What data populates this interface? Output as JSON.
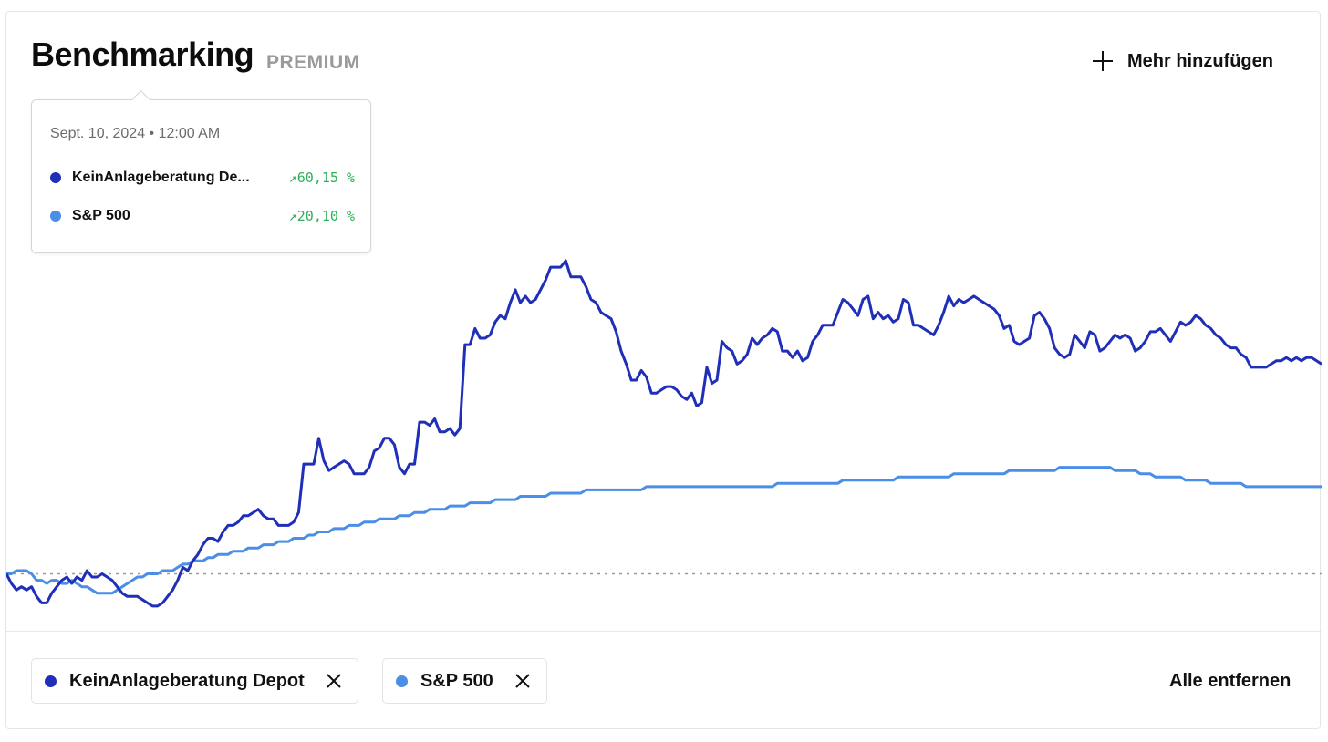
{
  "header": {
    "title": "Benchmarking",
    "badge": "PREMIUM",
    "add_label": "Mehr hinzufügen"
  },
  "tooltip": {
    "date": "Sept. 10, 2024 • 12:00 AM",
    "rows": [
      {
        "name": "KeinAnlageberatung De...",
        "value": "↗60,15 %",
        "color": "#1f2fb8"
      },
      {
        "name": "S&P 500",
        "value": "↗20,10 %",
        "color": "#4a8ee6"
      }
    ]
  },
  "chips": [
    {
      "name": "KeinAnlageberatung Depot",
      "color": "#1f2fb8",
      "remove_icon": "close-icon"
    },
    {
      "name": "S&P 500",
      "color": "#4a8ee6",
      "remove_icon": "close-icon"
    }
  ],
  "remove_all_label": "Alle entfernen",
  "colors": {
    "depot": "#1f2fb8",
    "sp500": "#4a8ee6",
    "positive": "#2fae5a",
    "baseline": "#9a9a9a"
  },
  "chart_data": {
    "type": "line",
    "baseline": 0,
    "ylim": [
      -12,
      145
    ],
    "grid": false,
    "series": [
      {
        "name": "KeinAnlageberatung Depot",
        "color": "#1f2fb8",
        "values": [
          0,
          -3,
          -5,
          -4,
          -5,
          -4,
          -7,
          -9,
          -9,
          -6,
          -4,
          -2,
          -1,
          -3,
          -1,
          -2,
          1,
          -1,
          -1,
          0,
          -1,
          -2,
          -4,
          -6,
          -7,
          -7,
          -7,
          -8,
          -9,
          -10,
          -10,
          -9,
          -7,
          -5,
          -2,
          2,
          1,
          4,
          6,
          9,
          11,
          11,
          10,
          13,
          15,
          15,
          16,
          18,
          18,
          19,
          20,
          18,
          17,
          17,
          15,
          15,
          15,
          16,
          19,
          34,
          34,
          34,
          42,
          35,
          32,
          33,
          34,
          35,
          34,
          31,
          31,
          31,
          33,
          38,
          39,
          42,
          42,
          40,
          33,
          31,
          34,
          34,
          47,
          47,
          46,
          48,
          44,
          44,
          45,
          43,
          45,
          71,
          71,
          76,
          73,
          73,
          74,
          78,
          80,
          79,
          84,
          88,
          84,
          86,
          84,
          85,
          88,
          91,
          95,
          95,
          95,
          97,
          92,
          92,
          92,
          89,
          85,
          84,
          81,
          80,
          79,
          75,
          69,
          65,
          60,
          60,
          63,
          61,
          56,
          56,
          57,
          58,
          58,
          57,
          55,
          54,
          56,
          52,
          53,
          64,
          59,
          60,
          72,
          70,
          69,
          65,
          66,
          68,
          73,
          71,
          73,
          74,
          76,
          75,
          69,
          69,
          67,
          69,
          66,
          67,
          72,
          74,
          77,
          77,
          77,
          81,
          85,
          84,
          82,
          80,
          85,
          86,
          79,
          81,
          79,
          80,
          78,
          79,
          85,
          84,
          77,
          77,
          76,
          75,
          74,
          77,
          81,
          86,
          83,
          85,
          84,
          85,
          86,
          85,
          84,
          83,
          82,
          80,
          76,
          77,
          72,
          71,
          72,
          73,
          80,
          81,
          79,
          76,
          70,
          68,
          67,
          68,
          74,
          72,
          70,
          75,
          74,
          69,
          70,
          72,
          74,
          73,
          74,
          73,
          69,
          70,
          72,
          75,
          75,
          76,
          74,
          72,
          75,
          78,
          77,
          78,
          80,
          79,
          77,
          76,
          74,
          73,
          71,
          70,
          70,
          68,
          67,
          64,
          64,
          64,
          64,
          65,
          66,
          66,
          67,
          66,
          67,
          66,
          67,
          67,
          66,
          65
        ]
      },
      {
        "name": "S&P 500",
        "color": "#4a8ee6",
        "values": [
          0,
          0,
          1,
          1,
          1,
          0,
          -2,
          -2,
          -3,
          -2,
          -2,
          -3,
          -3,
          -2,
          -3,
          -4,
          -4,
          -5,
          -6,
          -6,
          -6,
          -6,
          -5,
          -4,
          -3,
          -2,
          -1,
          -1,
          0,
          0,
          0,
          1,
          1,
          1,
          2,
          3,
          3,
          4,
          4,
          4,
          5,
          5,
          6,
          6,
          6,
          7,
          7,
          7,
          8,
          8,
          8,
          9,
          9,
          9,
          10,
          10,
          10,
          11,
          11,
          11,
          12,
          12,
          13,
          13,
          13,
          14,
          14,
          14,
          15,
          15,
          15,
          16,
          16,
          16,
          17,
          17,
          17,
          17,
          18,
          18,
          18,
          19,
          19,
          19,
          20,
          20,
          20,
          20,
          21,
          21,
          21,
          21,
          22,
          22,
          22,
          22,
          22,
          23,
          23,
          23,
          23,
          23,
          24,
          24,
          24,
          24,
          24,
          24,
          25,
          25,
          25,
          25,
          25,
          25,
          25,
          26,
          26,
          26,
          26,
          26,
          26,
          26,
          26,
          26,
          26,
          26,
          26,
          27,
          27,
          27,
          27,
          27,
          27,
          27,
          27,
          27,
          27,
          27,
          27,
          27,
          27,
          27,
          27,
          27,
          27,
          27,
          27,
          27,
          27,
          27,
          27,
          27,
          27,
          28,
          28,
          28,
          28,
          28,
          28,
          28,
          28,
          28,
          28,
          28,
          28,
          28,
          29,
          29,
          29,
          29,
          29,
          29,
          29,
          29,
          29,
          29,
          29,
          30,
          30,
          30,
          30,
          30,
          30,
          30,
          30,
          30,
          30,
          30,
          31,
          31,
          31,
          31,
          31,
          31,
          31,
          31,
          31,
          31,
          31,
          32,
          32,
          32,
          32,
          32,
          32,
          32,
          32,
          32,
          32,
          33,
          33,
          33,
          33,
          33,
          33,
          33,
          33,
          33,
          33,
          33,
          32,
          32,
          32,
          32,
          32,
          31,
          31,
          31,
          30,
          30,
          30,
          30,
          30,
          30,
          29,
          29,
          29,
          29,
          29,
          28,
          28,
          28,
          28,
          28,
          28,
          28,
          27,
          27,
          27,
          27,
          27,
          27,
          27,
          27,
          27,
          27,
          27,
          27,
          27,
          27,
          27,
          27
        ]
      }
    ]
  }
}
